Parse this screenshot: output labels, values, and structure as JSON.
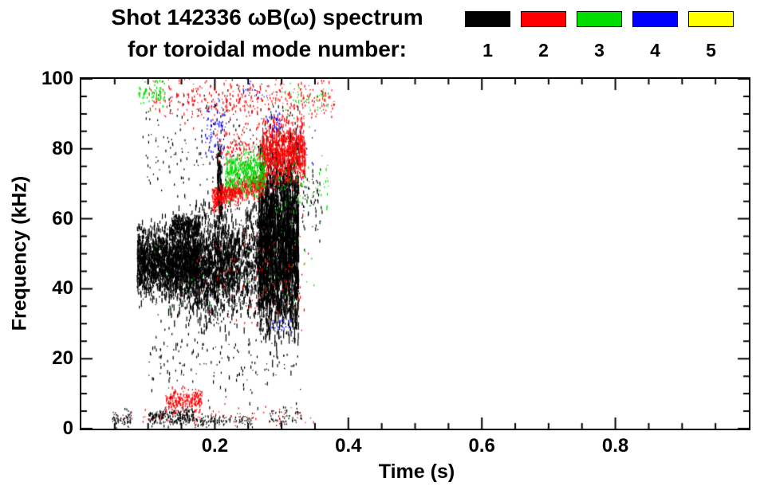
{
  "chart_data": {
    "type": "scatter",
    "title": "Shot 142336 ωB(ω) spectrum",
    "subtitle": "for toroidal mode number:",
    "xlabel": "Time (s)",
    "ylabel": "Frequency (kHz)",
    "xlim": [
      0,
      1
    ],
    "ylim": [
      0,
      100
    ],
    "xticks": [
      0.2,
      0.4,
      0.6,
      0.8
    ],
    "xtick_labels": [
      "0.2",
      "0.4",
      "0.6",
      "0.8"
    ],
    "yticks": [
      0,
      20,
      40,
      60,
      80,
      100
    ],
    "ytick_labels": [
      "0",
      "20",
      "40",
      "60",
      "80",
      "100"
    ],
    "x_minor_step": 0.05,
    "y_minor_step": 5,
    "grid": false,
    "legend_position": "top-right",
    "legend": [
      {
        "label": "1",
        "color": "#000000"
      },
      {
        "label": "2",
        "color": "#ff0000"
      },
      {
        "label": "3",
        "color": "#00dd00"
      },
      {
        "label": "4",
        "color": "#0000ff"
      },
      {
        "label": "5",
        "color": "#ffff00"
      }
    ],
    "series": [
      {
        "name": "mode 1",
        "color": "#000000",
        "clusters": [
          {
            "t": [
              0.083,
              0.175
            ],
            "f": [
              38,
              58
            ],
            "n": 2000,
            "streak": 7
          },
          {
            "t": [
              0.13,
              0.23
            ],
            "f": [
              30,
              60
            ],
            "n": 900,
            "streak": 9
          },
          {
            "t": [
              0.17,
              0.28
            ],
            "f": [
              33,
              63
            ],
            "n": 1300,
            "streak": 8
          },
          {
            "t": [
              0.265,
              0.325
            ],
            "f": [
              28,
              78
            ],
            "n": 2600,
            "streak": 12
          },
          {
            "t": [
              0.09,
              0.33
            ],
            "f": [
              62,
              100
            ],
            "n": 260,
            "streak": 3
          },
          {
            "t": [
              0.135,
              0.175
            ],
            "f": [
              55,
              61
            ],
            "n": 350,
            "streak": 4
          },
          {
            "t": [
              0.203,
              0.21
            ],
            "f": [
              60,
              82
            ],
            "n": 120,
            "streak": 10
          },
          {
            "t": [
              0.33,
              0.36
            ],
            "f": [
              55,
              75
            ],
            "n": 60,
            "streak": 4
          },
          {
            "t": [
              0.1,
              0.17
            ],
            "f": [
              1,
              6
            ],
            "n": 220,
            "streak": 3
          },
          {
            "t": [
              0.17,
              0.26
            ],
            "f": [
              0.5,
              4
            ],
            "n": 120,
            "streak": 2
          },
          {
            "t": [
              0.045,
              0.075
            ],
            "f": [
              0.5,
              5
            ],
            "n": 70,
            "streak": 2
          },
          {
            "t": [
              0.28,
              0.33
            ],
            "f": [
              0.5,
              6
            ],
            "n": 60,
            "streak": 2
          },
          {
            "t": [
              0.1,
              0.33
            ],
            "f": [
              8,
              30
            ],
            "n": 160,
            "streak": 4
          }
        ]
      },
      {
        "name": "mode 2",
        "color": "#ff0000",
        "clusters": [
          {
            "t": [
              0.195,
              0.275
            ],
            "f": [
              62,
              69
            ],
            "f2": [
              67,
              75
            ],
            "n": 600,
            "streak": 4
          },
          {
            "t": [
              0.27,
              0.335
            ],
            "f": [
              70,
              88
            ],
            "n": 900,
            "streak": 5
          },
          {
            "t": [
              0.2,
              0.27
            ],
            "f": [
              74,
              86
            ],
            "n": 120,
            "streak": 3
          },
          {
            "t": [
              0.1,
              0.38
            ],
            "f": [
              88,
              100
            ],
            "n": 380,
            "streak": 3
          },
          {
            "t": [
              0.125,
              0.18
            ],
            "f": [
              5,
              11
            ],
            "n": 220,
            "streak": 3
          },
          {
            "t": [
              0.06,
              0.35
            ],
            "f": [
              0.5,
              6
            ],
            "n": 70,
            "streak": 2
          },
          {
            "t": [
              0.17,
              0.34
            ],
            "f": [
              25,
              62
            ],
            "n": 90,
            "streak": 3
          }
        ]
      },
      {
        "name": "mode 3",
        "color": "#00dd00",
        "clusters": [
          {
            "t": [
              0.215,
              0.275
            ],
            "f": [
              67,
              79
            ],
            "n": 450,
            "streak": 4
          },
          {
            "t": [
              0.085,
              0.125
            ],
            "f": [
              92,
              100
            ],
            "n": 70,
            "streak": 3
          },
          {
            "t": [
              0.29,
              0.37
            ],
            "f": [
              60,
              78
            ],
            "n": 80,
            "streak": 3
          },
          {
            "t": [
              0.3,
              0.37
            ],
            "f": [
              88,
              100
            ],
            "n": 40,
            "streak": 2
          },
          {
            "t": [
              0.1,
              0.35
            ],
            "f": [
              30,
              60
            ],
            "n": 30,
            "streak": 2
          }
        ]
      },
      {
        "name": "mode 4",
        "color": "#0000ff",
        "clusters": [
          {
            "t": [
              0.185,
              0.215
            ],
            "f": [
              77,
              93
            ],
            "n": 70,
            "streak": 3
          },
          {
            "t": [
              0.275,
              0.3
            ],
            "f": [
              84,
              91
            ],
            "n": 30,
            "streak": 3
          },
          {
            "t": [
              0.285,
              0.315
            ],
            "f": [
              27,
              33
            ],
            "n": 25,
            "streak": 2
          },
          {
            "t": [
              0.24,
              0.28
            ],
            "f": [
              94,
              100
            ],
            "n": 15,
            "streak": 2
          },
          {
            "t": [
              0.32,
              0.35
            ],
            "f": [
              70,
              90
            ],
            "n": 12,
            "streak": 2
          }
        ]
      },
      {
        "name": "mode 5",
        "color": "#ffff00",
        "clusters": []
      }
    ]
  }
}
